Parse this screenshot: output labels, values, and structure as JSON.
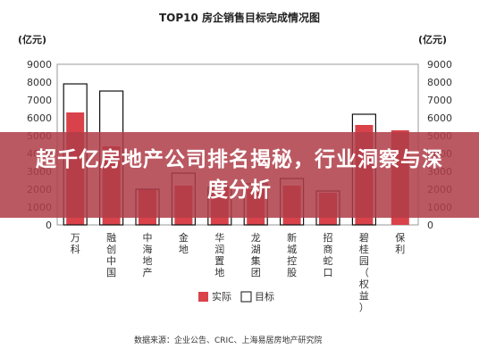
{
  "chart_data": {
    "type": "bar",
    "title": "TOP10 房企销售目标完成情况图",
    "y_unit_left": "(亿元)",
    "y_unit_right": "(亿元)",
    "ylim": [
      0,
      9000
    ],
    "yticks": [
      0,
      1000,
      2000,
      3000,
      4000,
      5000,
      6000,
      7000,
      8000,
      9000
    ],
    "categories": [
      "万科",
      "融创中国",
      "中海地产",
      "金地",
      "华润置地",
      "龙湖集团",
      "新城控股",
      "招商蛇口",
      "碧桂园（权益）",
      "保利"
    ],
    "series": [
      {
        "name": "实际",
        "values": [
          6300,
          4400,
          2000,
          2200,
          2100,
          2000,
          2200,
          1800,
          5600,
          5300
        ]
      },
      {
        "name": "目标",
        "values": [
          7900,
          7500,
          2000,
          2900,
          2100,
          2300,
          2600,
          1900,
          6200,
          0
        ]
      }
    ],
    "legend_position": "bottom",
    "source": "数据来源：企业公告、CRIC、上海易居房地产研究院"
  },
  "overlay": {
    "headline": "超千亿房地产公司排名揭秘，行业洞察与深度分析"
  },
  "colors": {
    "actual": "#d9424a",
    "target_stroke": "#111111",
    "banner": "#b03e48",
    "axis": "#999999"
  }
}
